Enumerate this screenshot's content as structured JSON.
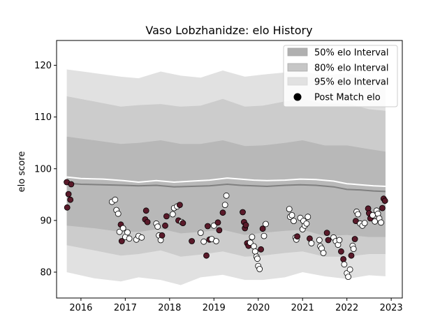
{
  "chart_data": {
    "type": "line",
    "title": "Vaso Lobzhanidze: elo History",
    "xlabel": "",
    "ylabel": "elo score",
    "xlim": [
      2015.45,
      2023.25
    ],
    "ylim": [
      75.0,
      124.8
    ],
    "x_ticks": [
      2016,
      2017,
      2018,
      2019,
      2020,
      2021,
      2022,
      2023
    ],
    "y_ticks": [
      80,
      90,
      100,
      110,
      120
    ],
    "legend_position": "top-right",
    "legend": [
      {
        "label": "50% elo Interval",
        "key": "band50"
      },
      {
        "label": "80% elo Interval",
        "key": "band80"
      },
      {
        "label": "95% elo Interval",
        "key": "band95"
      },
      {
        "label": "Post Match elo",
        "key": "points"
      }
    ],
    "colors": {
      "band95": "#e1e1e1",
      "band80": "#cccccc",
      "band50": "#b8b8b8",
      "median_line": "#808080",
      "mean_line": "#ffffff",
      "point_win": "#ffffff",
      "point_loss": "#5a1a2a",
      "point_edge": "#000000"
    },
    "bands": {
      "x": [
        2015.68,
        2016.3,
        2016.9,
        2017.3,
        2017.8,
        2018.25,
        2018.7,
        2019.2,
        2019.7,
        2020.1,
        2020.6,
        2021.0,
        2021.5,
        2022.0,
        2022.5,
        2022.87
      ],
      "p95_hi": [
        119.2,
        118.5,
        117.8,
        117.5,
        118.8,
        118.0,
        117.6,
        119.0,
        117.8,
        118.2,
        118.6,
        118.8,
        118.0,
        118.5,
        117.5,
        117.0
      ],
      "p80_hi": [
        114.0,
        113.0,
        112.0,
        112.3,
        112.5,
        112.0,
        112.2,
        113.5,
        112.0,
        112.2,
        113.0,
        113.5,
        112.5,
        112.6,
        111.5,
        111.2
      ],
      "p50_hi": [
        106.2,
        105.5,
        104.8,
        105.0,
        105.5,
        104.8,
        104.8,
        105.5,
        104.4,
        104.5,
        105.0,
        105.5,
        104.5,
        104.5,
        103.8,
        103.3
      ],
      "p50_lo": [
        89.0,
        88.5,
        87.8,
        87.8,
        88.4,
        87.5,
        87.8,
        88.2,
        87.2,
        87.6,
        88.0,
        88.2,
        87.0,
        87.2,
        86.8,
        86.8
      ],
      "p80_lo": [
        85.2,
        84.2,
        83.2,
        83.5,
        84.2,
        83.0,
        83.4,
        84.0,
        83.0,
        83.2,
        83.7,
        84.0,
        83.0,
        83.0,
        83.5,
        83.5
      ],
      "p95_lo": [
        80.0,
        78.8,
        78.2,
        79.0,
        78.5,
        77.5,
        79.0,
        79.5,
        78.5,
        78.5,
        79.0,
        80.0,
        79.2,
        78.7,
        79.4,
        79.2
      ]
    },
    "series": [
      {
        "key": "median",
        "x": [
          2015.68,
          2016.0,
          2016.5,
          2016.95,
          2017.3,
          2017.7,
          2018.1,
          2018.5,
          2018.9,
          2019.3,
          2019.6,
          2019.9,
          2020.2,
          2020.6,
          2020.95,
          2021.3,
          2021.7,
          2022.0,
          2022.3,
          2022.6,
          2022.87
        ],
        "values": [
          97.2,
          97.0,
          96.9,
          96.8,
          96.7,
          96.8,
          96.5,
          96.6,
          96.7,
          97.0,
          96.8,
          96.7,
          96.6,
          96.8,
          96.9,
          96.8,
          96.5,
          96.0,
          95.9,
          95.7,
          95.6
        ]
      },
      {
        "key": "mean",
        "x": [
          2015.68,
          2016.0,
          2016.5,
          2016.95,
          2017.3,
          2017.7,
          2018.1,
          2018.5,
          2018.9,
          2019.3,
          2019.6,
          2019.9,
          2020.2,
          2020.6,
          2020.95,
          2021.3,
          2021.7,
          2022.0,
          2022.3,
          2022.6,
          2022.87
        ],
        "values": [
          98.4,
          98.1,
          98.0,
          97.7,
          97.4,
          97.7,
          97.4,
          97.6,
          97.8,
          98.2,
          98.0,
          97.8,
          97.7,
          97.8,
          98.0,
          97.9,
          97.6,
          97.1,
          96.9,
          96.7,
          96.6
        ]
      }
    ],
    "points": [
      {
        "x": 2015.68,
        "y": 97.4,
        "r": "L"
      },
      {
        "x": 2015.69,
        "y": 92.5,
        "r": "L"
      },
      {
        "x": 2015.72,
        "y": 95.1,
        "r": "L"
      },
      {
        "x": 2015.76,
        "y": 94.0,
        "r": "L"
      },
      {
        "x": 2015.78,
        "y": 97.0,
        "r": "L"
      },
      {
        "x": 2016.7,
        "y": 93.6,
        "r": "W"
      },
      {
        "x": 2016.77,
        "y": 94.0,
        "r": "W"
      },
      {
        "x": 2016.8,
        "y": 92.0,
        "r": "W"
      },
      {
        "x": 2016.84,
        "y": 91.3,
        "r": "W"
      },
      {
        "x": 2016.87,
        "y": 87.8,
        "r": "W"
      },
      {
        "x": 2016.9,
        "y": 89.2,
        "r": "L"
      },
      {
        "x": 2016.92,
        "y": 86.0,
        "r": "L"
      },
      {
        "x": 2016.95,
        "y": 88.5,
        "r": "W"
      },
      {
        "x": 2017.0,
        "y": 86.8,
        "r": "W"
      },
      {
        "x": 2017.05,
        "y": 87.7,
        "r": "W"
      },
      {
        "x": 2017.09,
        "y": 86.5,
        "r": "W"
      },
      {
        "x": 2017.25,
        "y": 86.3,
        "r": "W"
      },
      {
        "x": 2017.3,
        "y": 87.0,
        "r": "W"
      },
      {
        "x": 2017.37,
        "y": 86.7,
        "r": "W"
      },
      {
        "x": 2017.45,
        "y": 90.2,
        "r": "L"
      },
      {
        "x": 2017.47,
        "y": 91.9,
        "r": "L"
      },
      {
        "x": 2017.5,
        "y": 89.7,
        "r": "L"
      },
      {
        "x": 2017.7,
        "y": 89.4,
        "r": "W"
      },
      {
        "x": 2017.73,
        "y": 88.8,
        "r": "W"
      },
      {
        "x": 2017.76,
        "y": 87.1,
        "r": "W"
      },
      {
        "x": 2017.8,
        "y": 86.2,
        "r": "W"
      },
      {
        "x": 2017.83,
        "y": 87.1,
        "r": "L"
      },
      {
        "x": 2017.9,
        "y": 89.0,
        "r": "L"
      },
      {
        "x": 2017.93,
        "y": 90.8,
        "r": "L"
      },
      {
        "x": 2018.07,
        "y": 91.2,
        "r": "W"
      },
      {
        "x": 2018.1,
        "y": 92.4,
        "r": "W"
      },
      {
        "x": 2018.17,
        "y": 92.7,
        "r": "W"
      },
      {
        "x": 2018.2,
        "y": 90.0,
        "r": "L"
      },
      {
        "x": 2018.23,
        "y": 93.0,
        "r": "L"
      },
      {
        "x": 2018.27,
        "y": 89.7,
        "r": "W"
      },
      {
        "x": 2018.3,
        "y": 89.5,
        "r": "L"
      },
      {
        "x": 2018.5,
        "y": 86.0,
        "r": "L"
      },
      {
        "x": 2018.7,
        "y": 87.6,
        "r": "W"
      },
      {
        "x": 2018.77,
        "y": 85.9,
        "r": "W"
      },
      {
        "x": 2018.83,
        "y": 83.2,
        "r": "L"
      },
      {
        "x": 2018.86,
        "y": 88.9,
        "r": "L"
      },
      {
        "x": 2018.9,
        "y": 86.3,
        "r": "L"
      },
      {
        "x": 2018.95,
        "y": 86.4,
        "r": "W"
      },
      {
        "x": 2019.0,
        "y": 89.0,
        "r": "W"
      },
      {
        "x": 2019.05,
        "y": 86.0,
        "r": "W"
      },
      {
        "x": 2019.09,
        "y": 89.6,
        "r": "L"
      },
      {
        "x": 2019.12,
        "y": 88.1,
        "r": "L"
      },
      {
        "x": 2019.2,
        "y": 91.5,
        "r": "L"
      },
      {
        "x": 2019.25,
        "y": 93.0,
        "r": "W"
      },
      {
        "x": 2019.28,
        "y": 94.8,
        "r": "W"
      },
      {
        "x": 2019.65,
        "y": 91.6,
        "r": "L"
      },
      {
        "x": 2019.68,
        "y": 89.7,
        "r": "L"
      },
      {
        "x": 2019.7,
        "y": 88.5,
        "r": "L"
      },
      {
        "x": 2019.72,
        "y": 89.1,
        "r": "L"
      },
      {
        "x": 2019.75,
        "y": 85.6,
        "r": "L"
      },
      {
        "x": 2019.78,
        "y": 85.1,
        "r": "L"
      },
      {
        "x": 2019.82,
        "y": 85.7,
        "r": "W"
      },
      {
        "x": 2019.86,
        "y": 86.8,
        "r": "W"
      },
      {
        "x": 2019.9,
        "y": 85.0,
        "r": "W"
      },
      {
        "x": 2019.93,
        "y": 84.0,
        "r": "W"
      },
      {
        "x": 2019.96,
        "y": 83.0,
        "r": "W"
      },
      {
        "x": 2019.98,
        "y": 82.6,
        "r": "W"
      },
      {
        "x": 2020.0,
        "y": 81.2,
        "r": "W"
      },
      {
        "x": 2020.03,
        "y": 80.6,
        "r": "W"
      },
      {
        "x": 2020.06,
        "y": 84.4,
        "r": "L"
      },
      {
        "x": 2020.1,
        "y": 88.4,
        "r": "L"
      },
      {
        "x": 2020.13,
        "y": 87.0,
        "r": "W"
      },
      {
        "x": 2020.17,
        "y": 89.3,
        "r": "W"
      },
      {
        "x": 2020.7,
        "y": 92.2,
        "r": "W"
      },
      {
        "x": 2020.72,
        "y": 90.7,
        "r": "W"
      },
      {
        "x": 2020.76,
        "y": 91.0,
        "r": "W"
      },
      {
        "x": 2020.8,
        "y": 89.9,
        "r": "W"
      },
      {
        "x": 2020.84,
        "y": 86.7,
        "r": "W"
      },
      {
        "x": 2020.86,
        "y": 86.3,
        "r": "W"
      },
      {
        "x": 2020.88,
        "y": 86.9,
        "r": "L"
      },
      {
        "x": 2020.95,
        "y": 90.5,
        "r": "W"
      },
      {
        "x": 2021.0,
        "y": 88.3,
        "r": "W"
      },
      {
        "x": 2021.02,
        "y": 89.9,
        "r": "W"
      },
      {
        "x": 2021.05,
        "y": 89.0,
        "r": "W"
      },
      {
        "x": 2021.09,
        "y": 89.4,
        "r": "W"
      },
      {
        "x": 2021.12,
        "y": 90.7,
        "r": "W"
      },
      {
        "x": 2021.16,
        "y": 86.5,
        "r": "L"
      },
      {
        "x": 2021.2,
        "y": 85.6,
        "r": "W"
      },
      {
        "x": 2021.38,
        "y": 86.2,
        "r": "W"
      },
      {
        "x": 2021.4,
        "y": 85.0,
        "r": "W"
      },
      {
        "x": 2021.43,
        "y": 84.6,
        "r": "W"
      },
      {
        "x": 2021.47,
        "y": 83.7,
        "r": "W"
      },
      {
        "x": 2021.55,
        "y": 87.6,
        "r": "L"
      },
      {
        "x": 2021.58,
        "y": 86.2,
        "r": "L"
      },
      {
        "x": 2021.7,
        "y": 86.7,
        "r": "W"
      },
      {
        "x": 2021.75,
        "y": 86.0,
        "r": "W"
      },
      {
        "x": 2021.8,
        "y": 85.3,
        "r": "W"
      },
      {
        "x": 2021.83,
        "y": 86.2,
        "r": "W"
      },
      {
        "x": 2021.87,
        "y": 84.0,
        "r": "L"
      },
      {
        "x": 2021.92,
        "y": 82.5,
        "r": "L"
      },
      {
        "x": 2021.94,
        "y": 81.5,
        "r": "W"
      },
      {
        "x": 2022.0,
        "y": 79.8,
        "r": "W"
      },
      {
        "x": 2022.03,
        "y": 79.1,
        "r": "W"
      },
      {
        "x": 2022.07,
        "y": 80.5,
        "r": "W"
      },
      {
        "x": 2022.1,
        "y": 83.2,
        "r": "L"
      },
      {
        "x": 2022.13,
        "y": 85.1,
        "r": "W"
      },
      {
        "x": 2022.15,
        "y": 84.5,
        "r": "W"
      },
      {
        "x": 2022.18,
        "y": 86.4,
        "r": "L"
      },
      {
        "x": 2022.2,
        "y": 89.9,
        "r": "L"
      },
      {
        "x": 2022.22,
        "y": 91.7,
        "r": "W"
      },
      {
        "x": 2022.25,
        "y": 91.2,
        "r": "W"
      },
      {
        "x": 2022.3,
        "y": 89.4,
        "r": "W"
      },
      {
        "x": 2022.35,
        "y": 89.0,
        "r": "W"
      },
      {
        "x": 2022.4,
        "y": 89.5,
        "r": "W"
      },
      {
        "x": 2022.48,
        "y": 92.3,
        "r": "L"
      },
      {
        "x": 2022.5,
        "y": 91.4,
        "r": "L"
      },
      {
        "x": 2022.53,
        "y": 90.4,
        "r": "L"
      },
      {
        "x": 2022.58,
        "y": 91.0,
        "r": "W"
      },
      {
        "x": 2022.63,
        "y": 89.8,
        "r": "W"
      },
      {
        "x": 2022.67,
        "y": 91.9,
        "r": "W"
      },
      {
        "x": 2022.7,
        "y": 91.3,
        "r": "W"
      },
      {
        "x": 2022.73,
        "y": 90.4,
        "r": "W"
      },
      {
        "x": 2022.77,
        "y": 89.6,
        "r": "W"
      },
      {
        "x": 2022.8,
        "y": 92.4,
        "r": "L"
      },
      {
        "x": 2022.83,
        "y": 94.2,
        "r": "L"
      },
      {
        "x": 2022.86,
        "y": 93.8,
        "r": "L"
      }
    ]
  }
}
